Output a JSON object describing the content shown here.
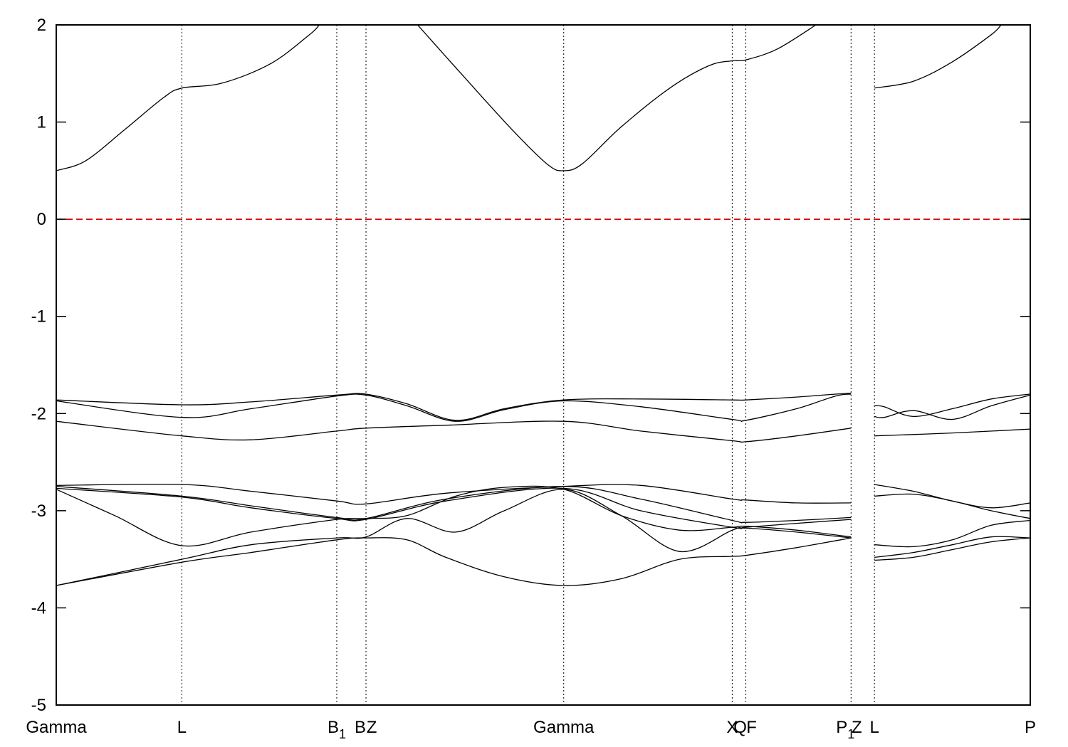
{
  "chart_data": {
    "type": "line",
    "title": "",
    "xlabel": "",
    "ylabel": "",
    "xlim": [
      0,
      1
    ],
    "ylim": [
      -5,
      2
    ],
    "yticks": [
      -5,
      -4,
      -3,
      -2,
      -1,
      0,
      1,
      2
    ],
    "grid": false,
    "legend": "none",
    "fermi_level": 0,
    "colors": {
      "bands": "#000000",
      "fermi": "#d40000",
      "kpath": "#000000"
    },
    "kpoints": [
      {
        "label": "Gamma",
        "sub": "",
        "x": 0.0
      },
      {
        "label": "L",
        "sub": "",
        "x": 0.129
      },
      {
        "label": "B",
        "sub": "1",
        "x": 0.288
      },
      {
        "label": "B",
        "sub": "",
        "x": 0.318
      },
      {
        "label": "Z",
        "sub": "",
        "x": 0.318
      },
      {
        "label": "Gamma",
        "sub": "",
        "x": 0.521
      },
      {
        "label": "X",
        "sub": "",
        "x": 0.694
      },
      {
        "label": "Q",
        "sub": "",
        "x": 0.708
      },
      {
        "label": "F",
        "sub": "",
        "x": 0.708
      },
      {
        "label": "P",
        "sub": "1",
        "x": 0.816
      },
      {
        "label": "Z",
        "sub": "",
        "x": 0.816
      },
      {
        "label": "L",
        "sub": "",
        "x": 0.84
      },
      {
        "label": "P",
        "sub": "",
        "x": 1.0
      }
    ],
    "series": [
      {
        "x": [
          0,
          0.03,
          0.07,
          0.11,
          0.129,
          0.17,
          0.22,
          0.26,
          0.27
        ],
        "y": [
          0.5,
          0.6,
          0.92,
          1.25,
          1.35,
          1.4,
          1.6,
          1.9,
          2.0
        ]
      },
      {
        "x": [
          0.371,
          0.42,
          0.47,
          0.505,
          0.521,
          0.54,
          0.58,
          0.63,
          0.67,
          0.694,
          0.708,
          0.74,
          0.78
        ],
        "y": [
          2.0,
          1.45,
          0.9,
          0.56,
          0.5,
          0.57,
          0.95,
          1.35,
          1.58,
          1.63,
          1.64,
          1.75,
          2.0
        ]
      },
      {
        "x": [
          0.84,
          0.88,
          0.92,
          0.96,
          0.97
        ],
        "y": [
          1.35,
          1.42,
          1.62,
          1.9,
          2.0
        ]
      },
      {
        "x": [
          0,
          0.129,
          0.2,
          0.288,
          0.318,
          0.36,
          0.41,
          0.46,
          0.521,
          0.6,
          0.694,
          0.708,
          0.76,
          0.8,
          0.816
        ],
        "y": [
          -1.86,
          -1.91,
          -1.88,
          -1.81,
          -1.8,
          -1.9,
          -2.07,
          -1.95,
          -1.86,
          -1.85,
          -1.86,
          -1.86,
          -1.83,
          -1.8,
          -1.79
        ]
      },
      {
        "x": [
          0,
          0.129,
          0.2,
          0.288,
          0.318,
          0.36,
          0.41,
          0.46,
          0.521,
          0.6,
          0.694,
          0.708,
          0.76,
          0.8,
          0.816
        ],
        "y": [
          -1.87,
          -2.04,
          -1.95,
          -1.82,
          -1.81,
          -1.92,
          -2.08,
          -1.96,
          -1.87,
          -1.93,
          -2.06,
          -2.07,
          -1.95,
          -1.82,
          -1.8
        ]
      },
      {
        "x": [
          0,
          0.129,
          0.2,
          0.288,
          0.318,
          0.4,
          0.521,
          0.6,
          0.694,
          0.708,
          0.76,
          0.816
        ],
        "y": [
          -2.08,
          -2.23,
          -2.27,
          -2.18,
          -2.15,
          -2.12,
          -2.08,
          -2.18,
          -2.28,
          -2.29,
          -2.23,
          -2.15
        ]
      },
      {
        "x": [
          0.84,
          0.85,
          0.88,
          0.92,
          0.96,
          1.0
        ],
        "y": [
          -1.92,
          -1.93,
          -2.03,
          -1.95,
          -1.85,
          -1.8
        ]
      },
      {
        "x": [
          0.84,
          0.85,
          0.88,
          0.92,
          0.96,
          1.0
        ],
        "y": [
          -2.03,
          -2.04,
          -1.97,
          -2.06,
          -1.92,
          -1.81
        ]
      },
      {
        "x": [
          0.84,
          0.92,
          1.0
        ],
        "y": [
          -2.23,
          -2.2,
          -2.16
        ]
      },
      {
        "x": [
          0,
          0.129,
          0.2,
          0.288,
          0.318,
          0.4,
          0.521,
          0.6,
          0.694,
          0.708,
          0.76,
          0.816
        ],
        "y": [
          -2.74,
          -2.73,
          -2.8,
          -2.9,
          -2.93,
          -2.82,
          -2.75,
          -2.74,
          -2.88,
          -2.89,
          -2.92,
          -2.92
        ]
      },
      {
        "x": [
          0,
          0.129,
          0.2,
          0.288,
          0.318,
          0.4,
          0.521,
          0.6,
          0.694,
          0.708,
          0.76,
          0.816
        ],
        "y": [
          -2.75,
          -2.85,
          -2.95,
          -3.07,
          -3.08,
          -2.88,
          -2.75,
          -2.88,
          -3.1,
          -3.12,
          -3.1,
          -3.07
        ]
      },
      {
        "x": [
          0,
          0.129,
          0.2,
          0.288,
          0.318,
          0.4,
          0.521,
          0.6,
          0.694,
          0.708,
          0.76,
          0.816
        ],
        "y": [
          -2.77,
          -2.86,
          -2.97,
          -3.08,
          -3.09,
          -2.9,
          -2.77,
          -3.0,
          -3.17,
          -3.17,
          -3.13,
          -3.09
        ]
      },
      {
        "x": [
          0,
          0.06,
          0.129,
          0.2,
          0.288,
          0.318,
          0.36,
          0.41,
          0.46,
          0.521,
          0.58,
          0.64,
          0.694,
          0.708,
          0.76,
          0.816
        ],
        "y": [
          -2.78,
          -3.05,
          -3.36,
          -3.22,
          -3.09,
          -3.08,
          -3.05,
          -2.85,
          -2.76,
          -2.78,
          -3.05,
          -3.2,
          -3.17,
          -3.16,
          -3.2,
          -3.27
        ]
      },
      {
        "x": [
          0,
          0.129,
          0.2,
          0.288,
          0.318,
          0.36,
          0.41,
          0.46,
          0.521,
          0.58,
          0.64,
          0.694,
          0.708,
          0.76,
          0.816
        ],
        "y": [
          -3.77,
          -3.5,
          -3.35,
          -3.28,
          -3.27,
          -3.08,
          -3.22,
          -3.0,
          -2.78,
          -3.05,
          -3.42,
          -3.2,
          -3.18,
          -3.22,
          -3.28
        ]
      },
      {
        "x": [
          0,
          0.129,
          0.2,
          0.288,
          0.318,
          0.36,
          0.4,
          0.46,
          0.521,
          0.58,
          0.64,
          0.694,
          0.708,
          0.76,
          0.816
        ],
        "y": [
          -3.77,
          -3.53,
          -3.43,
          -3.3,
          -3.28,
          -3.3,
          -3.48,
          -3.68,
          -3.77,
          -3.7,
          -3.5,
          -3.47,
          -3.46,
          -3.38,
          -3.28
        ]
      },
      {
        "x": [
          0.84,
          0.88,
          0.92,
          0.96,
          1.0
        ],
        "y": [
          -2.73,
          -2.8,
          -2.9,
          -2.97,
          -2.92
        ]
      },
      {
        "x": [
          0.84,
          0.88,
          0.92,
          0.96,
          1.0
        ],
        "y": [
          -2.85,
          -2.83,
          -2.9,
          -3.0,
          -3.08
        ]
      },
      {
        "x": [
          0.84,
          0.88,
          0.92,
          0.96,
          1.0
        ],
        "y": [
          -3.35,
          -3.37,
          -3.3,
          -3.15,
          -3.1
        ]
      },
      {
        "x": [
          0.84,
          0.88,
          0.92,
          0.96,
          1.0
        ],
        "y": [
          -3.48,
          -3.43,
          -3.35,
          -3.27,
          -3.28
        ]
      },
      {
        "x": [
          0.84,
          0.88,
          0.92,
          0.96,
          1.0
        ],
        "y": [
          -3.51,
          -3.48,
          -3.4,
          -3.32,
          -3.28
        ]
      }
    ]
  }
}
